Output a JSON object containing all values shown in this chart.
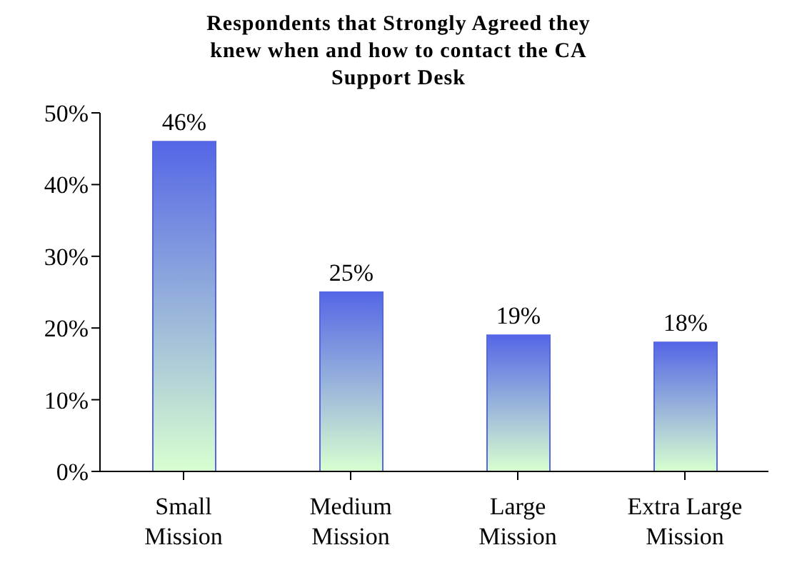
{
  "chart_data": {
    "type": "bar",
    "title": "Respondents that Strongly Agreed they knew when and how to contact the CA Support Desk",
    "categories": [
      "Small Mission",
      "Medium Mission",
      "Large Mission",
      "Extra Large Mission"
    ],
    "values": [
      46,
      25,
      19,
      18
    ],
    "value_labels": [
      "46%",
      "25%",
      "19%",
      "18%"
    ],
    "color": "#5566e6",
    "ylim": [
      0,
      50
    ],
    "yticks": [
      {
        "value": 0,
        "label": "0%"
      },
      {
        "value": 10,
        "label": "10%"
      },
      {
        "value": 20,
        "label": "20%"
      },
      {
        "value": 30,
        "label": "30%"
      },
      {
        "value": 40,
        "label": "40%"
      },
      {
        "value": 50,
        "label": "50%"
      }
    ],
    "grid": false,
    "legend": false
  }
}
